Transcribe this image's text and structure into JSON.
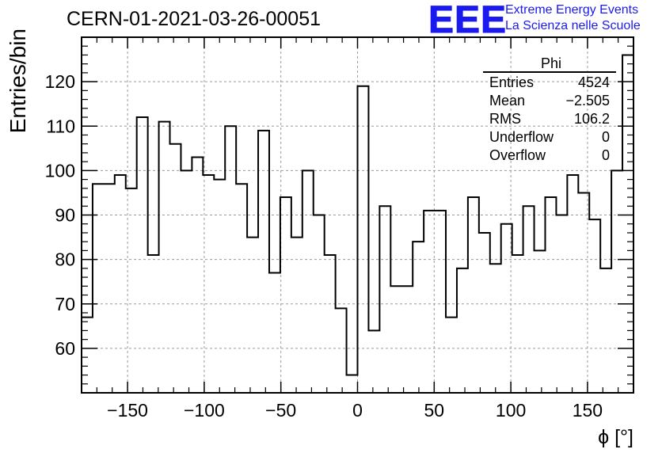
{
  "header": {
    "run_title": "CERN-01-2021-03-26-00051"
  },
  "logo": {
    "mark": "EEE",
    "line1": "Extreme Energy Events",
    "line2": "La Scienza nelle Scuole",
    "color": "#1a1af0"
  },
  "stats_box": {
    "title": "Phi",
    "rows": [
      {
        "label": "Entries",
        "value": "4524"
      },
      {
        "label": "Mean",
        "value": "−2.505"
      },
      {
        "label": "RMS",
        "value": "106.2"
      },
      {
        "label": "Underflow",
        "value": "0"
      },
      {
        "label": "Overflow",
        "value": "0"
      }
    ]
  },
  "chart_data": {
    "type": "histogram",
    "xlabel": "ϕ [°]",
    "ylabel": "Entries/bin",
    "xlim": [
      -180,
      180
    ],
    "ylim": [
      50,
      130
    ],
    "bin_width": 7.2,
    "xticks": [
      -150,
      -100,
      -50,
      0,
      50,
      100,
      150
    ],
    "yticks": [
      60,
      70,
      80,
      90,
      100,
      110,
      120
    ],
    "grid": true,
    "values": [
      67,
      97,
      97,
      99,
      96,
      112,
      81,
      111,
      106,
      100,
      103,
      99,
      98,
      110,
      97,
      85,
      109,
      77,
      94,
      85,
      100,
      90,
      81,
      69,
      54,
      119,
      64,
      92,
      74,
      74,
      84,
      91,
      91,
      67,
      78,
      94,
      86,
      79,
      88,
      81,
      92,
      82,
      94,
      90,
      99,
      95,
      89,
      78,
      100,
      126
    ]
  }
}
